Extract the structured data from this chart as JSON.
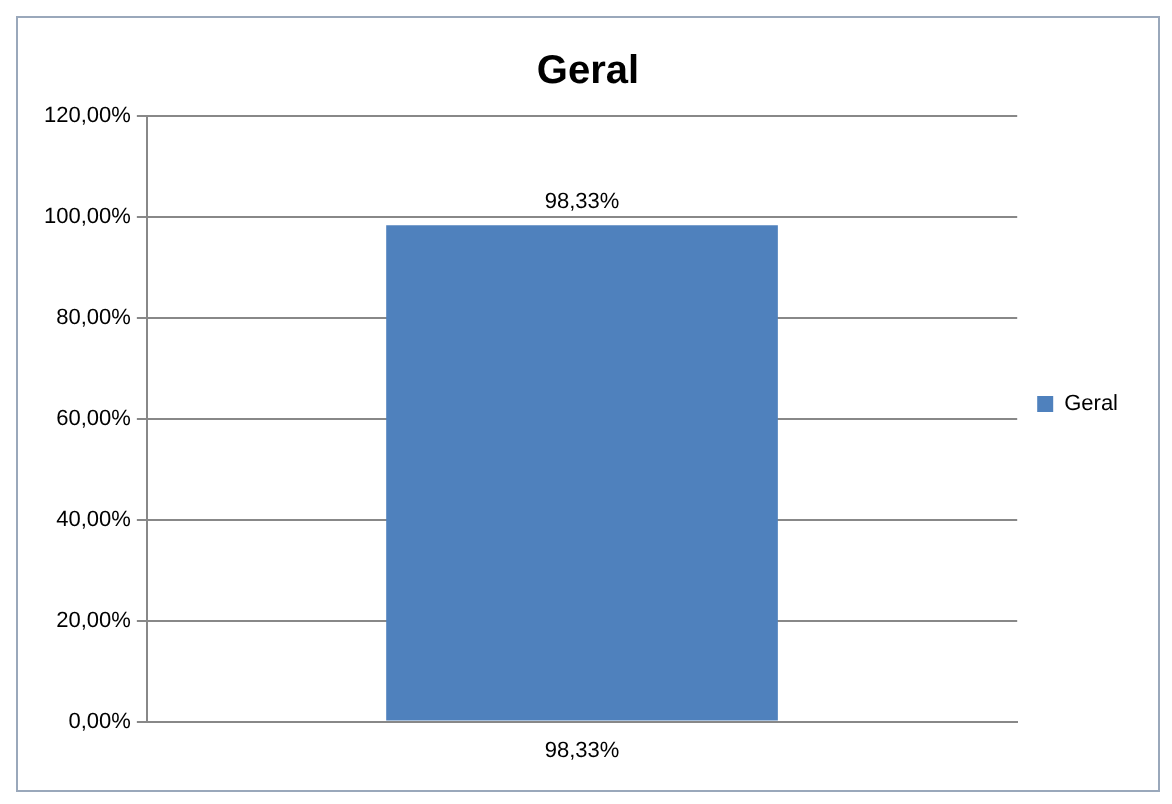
{
  "chart_data": {
    "type": "bar",
    "title": "Geral",
    "categories": [
      "98,33%"
    ],
    "series": [
      {
        "name": "Geral",
        "color": "#4f81bd",
        "values": [
          98.33
        ],
        "value_labels": [
          "98,33%"
        ]
      }
    ],
    "ylim": [
      0,
      120
    ],
    "yticks": [
      {
        "value": 0,
        "label": "0,00%"
      },
      {
        "value": 20,
        "label": "20,00%"
      },
      {
        "value": 40,
        "label": "40,00%"
      },
      {
        "value": 60,
        "label": "60,00%"
      },
      {
        "value": 80,
        "label": "80,00%"
      },
      {
        "value": 100,
        "label": "100,00%"
      },
      {
        "value": 120,
        "label": "120,00%"
      }
    ],
    "grid": "y",
    "legend": "right"
  }
}
